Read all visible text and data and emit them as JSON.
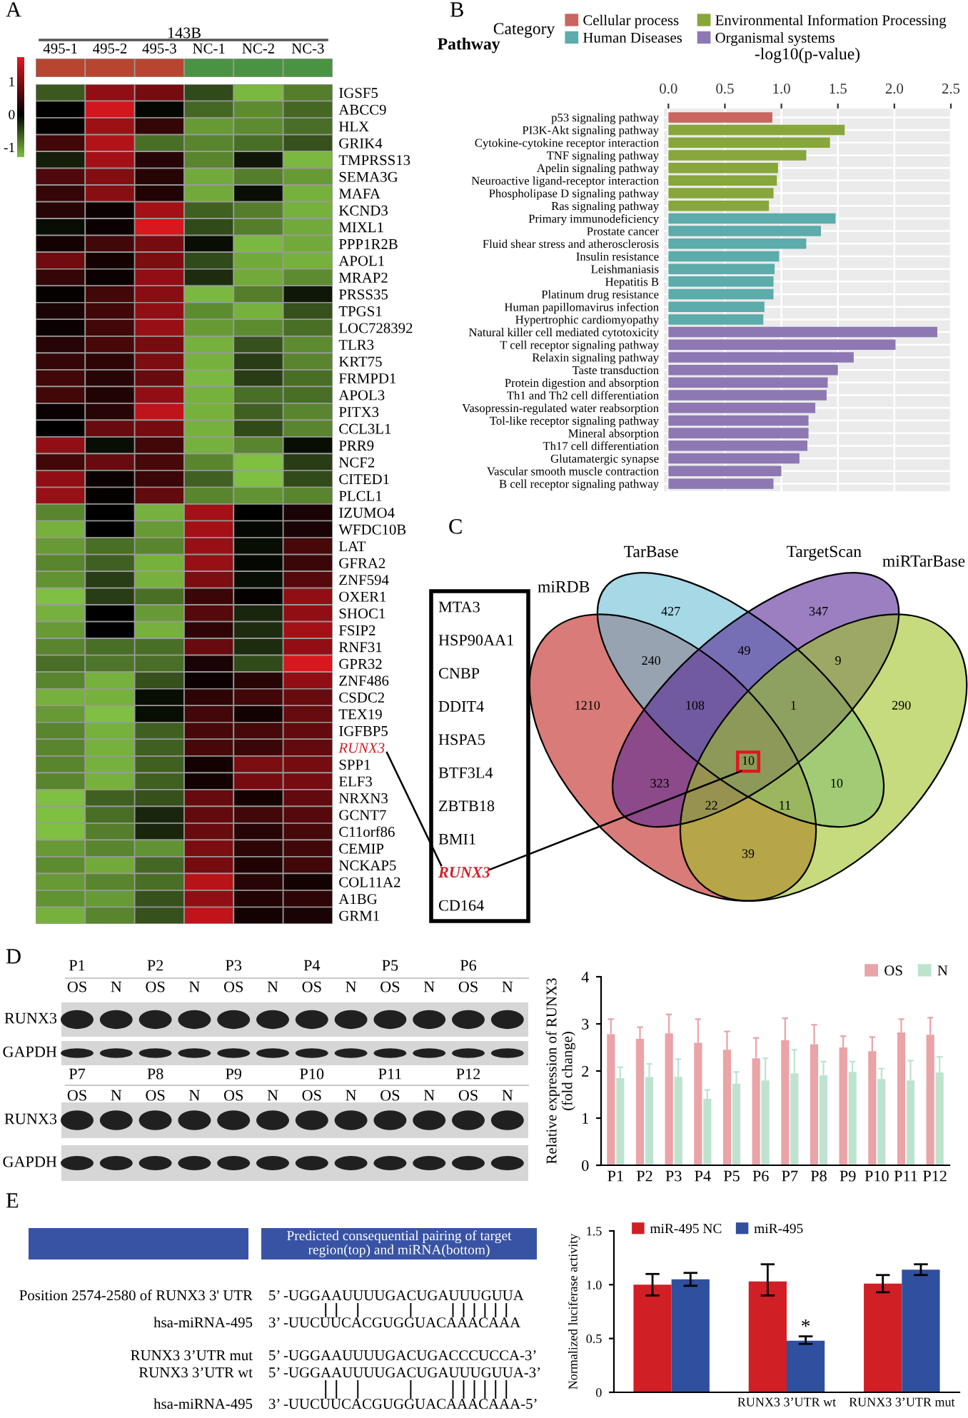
{
  "chart_data": [
    {
      "type": "heatmap",
      "title": "A",
      "xlabel": "143B",
      "categories": [
        "495-1",
        "495-2",
        "495-3",
        "NC-1",
        "NC-2",
        "NC-3"
      ],
      "y_categories": [
        "IGSF5",
        "ABCC9",
        "HLX",
        "GRIK4",
        "TMPRSS13",
        "SEMA3G",
        "MAFA",
        "KCND3",
        "MIXL1",
        "PPP1R2B",
        "APOL1",
        "MRAP2",
        "PRSS35",
        "TPGS1",
        "LOC728392",
        "TLR3",
        "KRT75",
        "FRMPD1",
        "APOL3",
        "PITX3",
        "CCL3L1",
        "PRR9",
        "NCF2",
        "CITED1",
        "PLCL1",
        "IZUMO4",
        "WFDC10B",
        "LAT",
        "GFRA2",
        "ZNF594",
        "OXER1",
        "SHOC1",
        "FSIP2",
        "RNF31",
        "GPR32",
        "ZNF486",
        "CSDC2",
        "TEX19",
        "IGFBP5",
        "RUNX3",
        "SPP1",
        "ELF3",
        "NRXN3",
        "GCNT7",
        "C11orf86",
        "CEMIP",
        "NCKAP5",
        "COL11A2",
        "A1BG",
        "GRM1"
      ],
      "cells": [
        [
          -0.6,
          1.1,
          0.9,
          -0.5,
          -1.25,
          -0.85
        ],
        [
          0.0,
          1.6,
          -0.05,
          -0.7,
          -0.95,
          -0.7
        ],
        [
          0.05,
          1.2,
          0.4,
          -1.05,
          -0.95,
          -0.75
        ],
        [
          0.5,
          1.35,
          -0.75,
          -0.9,
          -0.75,
          -0.55
        ],
        [
          -0.2,
          1.25,
          0.3,
          -0.9,
          -0.15,
          -1.25
        ],
        [
          0.6,
          1.0,
          0.3,
          -1.15,
          -0.85,
          -1.05
        ],
        [
          0.4,
          1.05,
          0.25,
          -1.15,
          -0.1,
          -1.2
        ],
        [
          0.3,
          0.1,
          1.25,
          -0.65,
          -0.85,
          -1.2
        ],
        [
          -0.1,
          0.1,
          1.65,
          -0.5,
          -0.85,
          -1.15
        ],
        [
          0.15,
          0.5,
          0.9,
          -0.1,
          -1.25,
          -1.15
        ],
        [
          0.85,
          0.15,
          0.95,
          -0.5,
          -1.15,
          -1.2
        ],
        [
          0.4,
          0.1,
          1.1,
          -0.3,
          -1.15,
          -0.95
        ],
        [
          0.05,
          0.5,
          1.05,
          -1.25,
          -0.85,
          -0.15
        ],
        [
          0.2,
          0.5,
          1.1,
          -0.95,
          -1.2,
          -0.55
        ],
        [
          0.1,
          0.5,
          1.15,
          -1.05,
          -0.95,
          -0.75
        ],
        [
          0.3,
          0.55,
          0.9,
          -1.2,
          -0.55,
          -0.95
        ],
        [
          0.4,
          0.35,
          0.95,
          -1.2,
          -0.4,
          -0.9
        ],
        [
          0.5,
          0.3,
          0.8,
          -1.25,
          -0.4,
          -0.75
        ],
        [
          0.5,
          0.25,
          1.1,
          -1.2,
          -0.75,
          -0.75
        ],
        [
          0.1,
          0.3,
          1.45,
          -1.2,
          -0.65,
          -0.9
        ],
        [
          0.0,
          0.8,
          0.9,
          -1.2,
          -0.5,
          -0.9
        ],
        [
          1.1,
          -0.1,
          0.5,
          -1.2,
          -0.9,
          -0.1
        ],
        [
          0.5,
          0.8,
          0.55,
          -0.9,
          -1.3,
          -0.4
        ],
        [
          1.1,
          0.1,
          0.45,
          -0.65,
          -1.3,
          -0.5
        ],
        [
          1.15,
          0.05,
          0.75,
          -0.9,
          -1.0,
          -0.9
        ],
        [
          -0.9,
          0.0,
          -1.2,
          1.25,
          0.0,
          0.2
        ],
        [
          -1.2,
          0.0,
          -1.05,
          1.25,
          -0.05,
          0.2
        ],
        [
          -1.05,
          -0.75,
          -0.9,
          1.15,
          -0.1,
          0.55
        ],
        [
          -0.9,
          -0.65,
          -1.2,
          1.15,
          -0.05,
          0.45
        ],
        [
          -1.0,
          -0.4,
          -1.2,
          0.95,
          -0.1,
          0.65
        ],
        [
          -1.3,
          -0.4,
          -0.75,
          0.45,
          0.05,
          1.1
        ],
        [
          -1.2,
          0.0,
          -1.05,
          0.65,
          -0.25,
          1.1
        ],
        [
          -1.05,
          0.0,
          -1.2,
          0.35,
          -0.3,
          1.25
        ],
        [
          -0.9,
          -0.75,
          -0.75,
          0.8,
          -0.3,
          1.1
        ],
        [
          -0.75,
          -0.8,
          -0.75,
          0.2,
          -0.5,
          1.65
        ],
        [
          -0.9,
          -1.2,
          -0.55,
          0.1,
          0.3,
          1.1
        ],
        [
          -1.2,
          -1.2,
          -0.1,
          0.35,
          0.5,
          0.8
        ],
        [
          -1.05,
          -1.3,
          -0.1,
          0.5,
          0.15,
          0.8
        ],
        [
          -0.9,
          -1.2,
          -0.65,
          0.55,
          0.55,
          0.75
        ],
        [
          -0.9,
          -1.2,
          -0.65,
          0.55,
          0.45,
          0.75
        ],
        [
          -0.9,
          -1.2,
          -0.65,
          0.15,
          0.95,
          0.9
        ],
        [
          -0.9,
          -1.2,
          -0.65,
          0.15,
          0.9,
          0.9
        ],
        [
          -1.3,
          -0.65,
          -0.55,
          0.8,
          0.15,
          0.75
        ],
        [
          -1.3,
          -0.75,
          -0.25,
          0.75,
          0.5,
          0.65
        ],
        [
          -1.3,
          -0.85,
          -0.25,
          0.8,
          0.3,
          0.55
        ],
        [
          -1.05,
          -0.9,
          -1.0,
          0.95,
          0.35,
          0.5
        ],
        [
          -0.95,
          -1.15,
          -0.7,
          0.9,
          0.25,
          0.5
        ],
        [
          -1.05,
          -0.9,
          -0.75,
          1.4,
          0.3,
          0.15
        ],
        [
          -1.0,
          -1.05,
          -0.55,
          1.1,
          0.25,
          0.35
        ],
        [
          -1.2,
          -0.9,
          -0.55,
          1.45,
          0.15,
          0.2
        ]
      ],
      "clim": [
        -1.3,
        1.74
      ],
      "cticks": [
        1,
        0,
        -1
      ]
    },
    {
      "type": "bar",
      "orientation": "horizontal",
      "title": "B",
      "ylabel": "Pathway",
      "xlabel": "-log10(p-value)",
      "legend_title": "Category",
      "legend": "top",
      "grid": true,
      "categories": [
        "p53 signaling pathway",
        "PI3K-Akt signaling pathway",
        "Cytokine-cytokine receptor interaction",
        "TNF signaling pathway",
        "Apelin signaling pathway",
        "Neuroactive ligand-receptor interaction",
        "Phospholipase D signaling pathway",
        "Ras signaling pathway",
        "Primary immunodeficiency",
        "Prostate cancer",
        "Fluid shear stress and atherosclerosis",
        "Insulin resistance",
        "Leishmaniasis",
        "Hepatitis B",
        "Platinum drug resistance",
        "Human papillomavirus infection",
        "Hypertrophic cardiomyopathy",
        "Natural killer cell mediated cytotoxicity",
        "T cell receptor signaling pathway",
        "Relaxin signaling pathway",
        "Taste transduction",
        "Protein digestion and absorption",
        "Th1 and Th2 cell differentiation",
        "Vasopressin-regulated water reabsorption",
        "Tol-like receptor signaling pathway",
        "Mineral absorption",
        "Th17 cell differentiation",
        "Glutamatergic synapse",
        "Vascular smooth muscle contraction",
        "B cell receptor signaling pathway"
      ],
      "series": [
        {
          "name": "Cellular process",
          "color": "#c9665f",
          "values": [
            0.92,
            null,
            null,
            null,
            null,
            null,
            null,
            null,
            null,
            null,
            null,
            null,
            null,
            null,
            null,
            null,
            null,
            null,
            null,
            null,
            null,
            null,
            null,
            null,
            null,
            null,
            null,
            null,
            null,
            null
          ]
        },
        {
          "name": "Human Diseases",
          "color": "#5bacab",
          "values": [
            null,
            null,
            null,
            null,
            null,
            null,
            null,
            null,
            1.48,
            1.35,
            1.22,
            0.98,
            0.94,
            0.93,
            0.93,
            0.85,
            0.84,
            null,
            null,
            null,
            null,
            null,
            null,
            null,
            null,
            null,
            null,
            null,
            null,
            null
          ]
        },
        {
          "name": "Environmental Information Processing",
          "color": "#87a63b",
          "values": [
            null,
            1.56,
            1.43,
            1.22,
            0.97,
            0.96,
            0.93,
            0.89,
            null,
            null,
            null,
            null,
            null,
            null,
            null,
            null,
            null,
            null,
            null,
            null,
            null,
            null,
            null,
            null,
            null,
            null,
            null,
            null,
            null,
            null
          ]
        },
        {
          "name": "Organismal systems",
          "color": "#8d78b3",
          "values": [
            null,
            null,
            null,
            null,
            null,
            null,
            null,
            null,
            null,
            null,
            null,
            null,
            null,
            null,
            null,
            null,
            null,
            2.38,
            2.01,
            1.64,
            1.5,
            1.41,
            1.4,
            1.3,
            1.24,
            1.24,
            1.23,
            1.16,
            1.0,
            0.93
          ]
        }
      ],
      "xlim": [
        -0.04,
        2.5
      ],
      "xticks": [
        {
          "value": 0,
          "label": "0.0"
        },
        0.5,
        {
          "value": 1,
          "label": "1.0"
        },
        1.5,
        {
          "value": 2,
          "label": "2.0"
        },
        2.5
      ]
    },
    {
      "type": "other",
      "title": "C",
      "categories": [
        "miRDB",
        "TarBase",
        "TargetScan",
        "miRTarBase"
      ],
      "colors": [
        "#c0231e",
        "#6bbed5",
        "#582a96",
        "#9ec328"
      ],
      "annotations": [
        "1210",
        "427",
        "347",
        "290",
        "240",
        "49",
        "9",
        "108",
        "1",
        "323",
        "10",
        "10",
        "22",
        "11",
        "39"
      ]
    },
    {
      "type": "other",
      "annotations": [
        "MTA3",
        "HSP90AA1",
        "CNBP",
        "DDIT4",
        "HSPA5",
        "BTF3L4",
        "ZBTB18",
        "BMI1",
        "RUNX3",
        "CD164"
      ]
    },
    {
      "type": "other",
      "title": "D",
      "categories": [
        "P1",
        "P2",
        "P3",
        "P4",
        "P5",
        "P6",
        "P7",
        "P8",
        "P9",
        "P10",
        "P11",
        "P12"
      ],
      "annotations": [
        "OS",
        "N"
      ],
      "y_categories": [
        "RUNX3",
        "GAPDH"
      ]
    },
    {
      "type": "bar",
      "categories": [
        "P1",
        "P2",
        "P3",
        "P4",
        "P5",
        "P6",
        "P7",
        "P8",
        "P9",
        "P10",
        "P11",
        "P12"
      ],
      "series": [
        {
          "name": "OS",
          "color": "#eaa3a6",
          "values": [
            2.78,
            2.68,
            2.8,
            2.6,
            2.45,
            2.27,
            2.65,
            2.57,
            2.5,
            2.42,
            2.82,
            2.77
          ],
          "errors": [
            [
              2.78,
              3.1
            ],
            [
              2.68,
              2.93
            ],
            [
              2.8,
              3.2
            ],
            [
              2.6,
              3.1
            ],
            [
              2.45,
              2.84
            ],
            [
              2.27,
              2.7
            ],
            [
              2.65,
              3.12
            ],
            [
              2.57,
              2.98
            ],
            [
              2.5,
              2.74
            ],
            [
              2.42,
              2.72
            ],
            [
              2.82,
              3.1
            ],
            [
              2.77,
              3.13
            ]
          ]
        },
        {
          "name": "N",
          "color": "#bde3cf",
          "values": [
            1.85,
            1.87,
            1.88,
            1.41,
            1.73,
            1.8,
            1.95,
            1.91,
            1.98,
            1.83,
            1.8,
            1.97
          ],
          "errors": [
            [
              1.85,
              2.08
            ],
            [
              1.87,
              2.15
            ],
            [
              1.88,
              2.25
            ],
            [
              1.41,
              1.6
            ],
            [
              1.73,
              1.98
            ],
            [
              1.8,
              2.27
            ],
            [
              1.95,
              2.45
            ],
            [
              1.91,
              2.2
            ],
            [
              1.98,
              2.2
            ],
            [
              1.83,
              2.05
            ],
            [
              1.8,
              2.22
            ],
            [
              1.97,
              2.3
            ]
          ]
        }
      ],
      "ylabel": "Relative expression of RUNX3\n(fold change)",
      "ylim": [
        0,
        4
      ],
      "yticks": [
        0,
        1,
        2,
        3,
        4
      ],
      "legend": "top right"
    },
    {
      "type": "other",
      "title": "E",
      "subtitle": "Predicted consequential pairing of target\nregion(top) and miRNA(bottom)",
      "y_categories": [
        "Position 2574-2580 of RUNX3 3' UTR",
        "hsa-miRNA-495",
        "RUNX3 3’UTR mut",
        "RUNX3 3’UTR wt",
        "hsa-miRNA-495"
      ],
      "annotations": [
        "5’ -UGGAAUUUUGACUGAUUUGUUA",
        "3’ -UUCUUCACGUGGUACAAACAAA",
        "5’ -UGGAAUUUUGACUGACCCUCCA-3’",
        "5’ -UGGAAUUUUGACUGAUUUGUUA-3’",
        "3’ -UUCUUCACGUGGUACAAACAAA-5’"
      ]
    },
    {
      "type": "bar",
      "categories": [
        null,
        "RUNX3 3’UTR wt",
        "RUNX3 3’UTR mut"
      ],
      "series": [
        {
          "name": "miR-495 NC",
          "color": "#d11f26",
          "values": [
            1.0,
            1.03,
            1.01
          ],
          "errors": [
            [
              0.9,
              1.1
            ],
            [
              0.9,
              1.19
            ],
            [
              0.93,
              1.09
            ]
          ]
        },
        {
          "name": "miR-495",
          "color": "#2f4f9f",
          "values": [
            1.05,
            0.48,
            1.14
          ],
          "errors": [
            [
              0.99,
              1.11
            ],
            [
              0.45,
              0.52
            ],
            [
              1.09,
              1.19
            ]
          ]
        }
      ],
      "ylabel": "Normalized luciferase activity",
      "ylim": [
        0,
        1.5
      ],
      "yticks": [
        0,
        0.5,
        {
          "value": 1,
          "label": "1.0"
        },
        1.5
      ],
      "legend": "top",
      "annotations": [
        {
          "text": "*",
          "x": "RUNX3 3’UTR wt",
          "y": 0.6
        }
      ]
    }
  ]
}
